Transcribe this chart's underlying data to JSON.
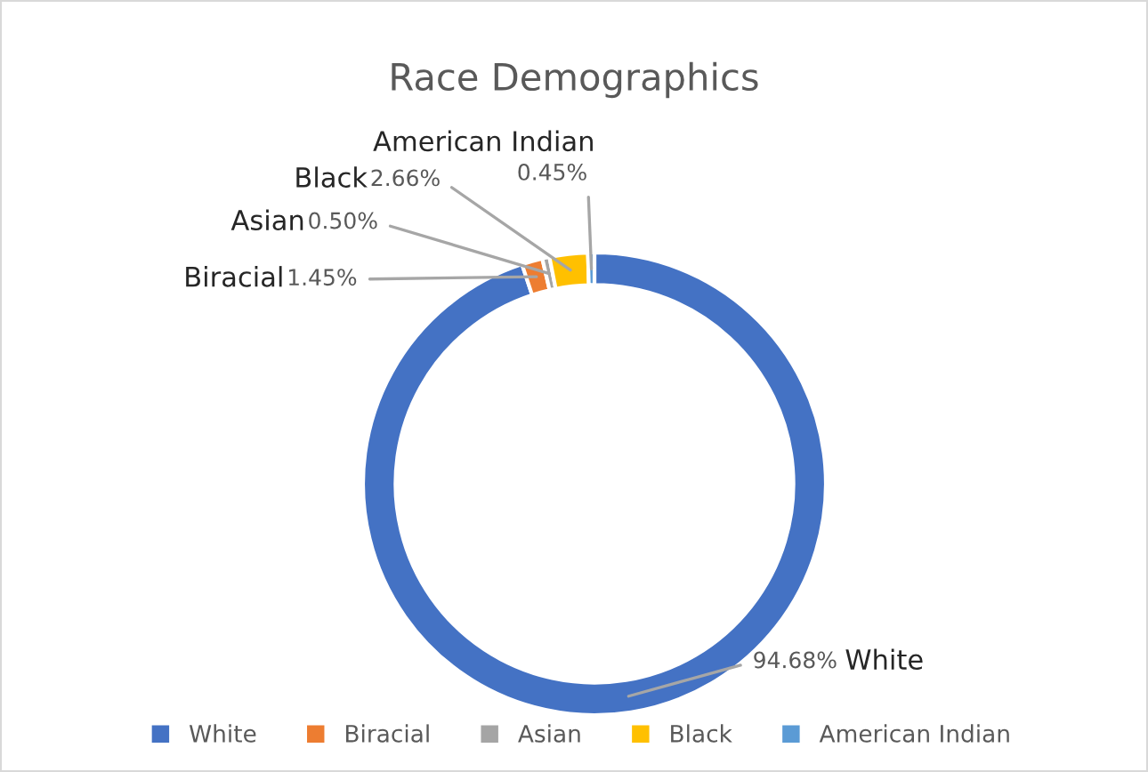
{
  "chart_data": {
    "type": "donut",
    "title": "Race Demographics",
    "categories": [
      "White",
      "Biracial",
      "Asian",
      "Black",
      "American Indian"
    ],
    "values": [
      94.68,
      1.45,
      0.5,
      2.66,
      0.45
    ],
    "value_labels": [
      "94.68%",
      "1.45%",
      "0.50%",
      "2.66%",
      "0.45%"
    ],
    "colors": [
      "#4472c4",
      "#ed7d31",
      "#a5a5a5",
      "#ffc000",
      "#5b9bd5"
    ],
    "legend": "bottom"
  }
}
